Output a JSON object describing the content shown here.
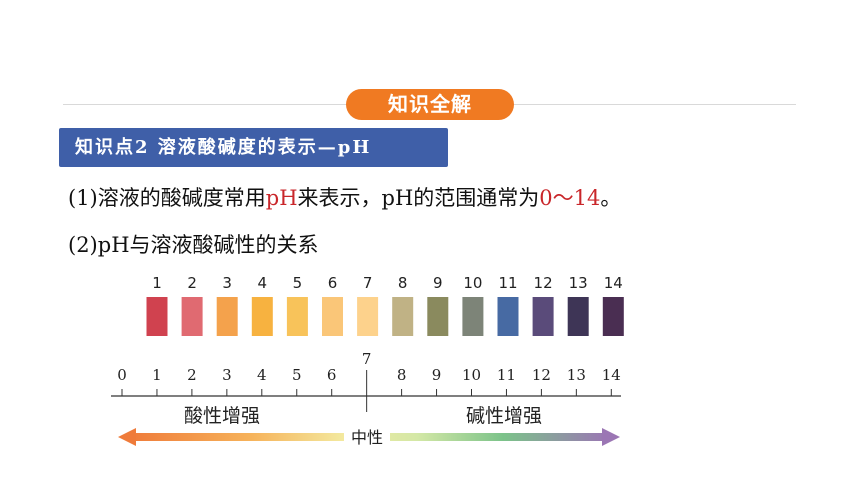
{
  "section_badge": "知识全解",
  "topic_banner": "知识点2 溶液酸碱度的表示—pH",
  "paragraph1": {
    "prefix": "(1)溶液的酸碱度常用",
    "ph_red": "pH",
    "middle": "来表示，pH的范围通常为",
    "range_red": "0～14",
    "suffix": "。"
  },
  "paragraph2": "(2)pH与溶液酸碱性的关系",
  "ph_chart": {
    "swatch_labels": [
      "1",
      "2",
      "3",
      "4",
      "5",
      "6",
      "7",
      "8",
      "9",
      "10",
      "11",
      "12",
      "13",
      "14"
    ],
    "swatch_colors": [
      "#d0424f",
      "#e06a71",
      "#f4a24c",
      "#f7b240",
      "#f8c35a",
      "#fac678",
      "#fdd28c",
      "#c0b285",
      "#8a8a5e",
      "#7d8478",
      "#476aa3",
      "#5a4b7a",
      "#3e3556",
      "#4a2e52"
    ],
    "scale_labels": [
      "0",
      "1",
      "2",
      "3",
      "4",
      "5",
      "6",
      "7",
      "8",
      "9",
      "10",
      "11",
      "12",
      "13",
      "14"
    ],
    "acid_label": "酸性增强",
    "base_label": "碱性增强",
    "neutral_label": "中性"
  }
}
